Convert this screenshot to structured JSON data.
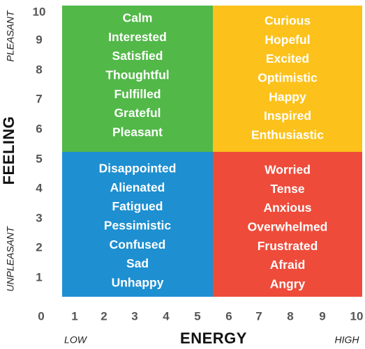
{
  "axes": {
    "y_title": "FEELING",
    "y_top": "PLEASANT",
    "y_bottom": "UNPLEASANT",
    "x_title": "ENERGY",
    "x_left": "LOW",
    "x_right": "HIGH",
    "ticks": [
      0,
      1,
      2,
      3,
      4,
      5,
      6,
      7,
      8,
      9,
      10
    ]
  },
  "quadrants": [
    {
      "color": "#52b848",
      "words": [
        "Calm",
        "Interested",
        "Satisfied",
        "Thoughtful",
        "Fulfilled",
        "Grateful",
        "Pleasant"
      ]
    },
    {
      "color": "#fcc21b",
      "words": [
        "Curious",
        "Hopeful",
        "Excited",
        "Optimistic",
        "Happy",
        "Inspired",
        "Enthusiastic"
      ]
    },
    {
      "color": "#1e8fd0",
      "words": [
        "Disappointed",
        "Alienated",
        "Fatigued",
        "Pessimistic",
        "Confused",
        "Sad",
        "Unhappy"
      ]
    },
    {
      "color": "#ee4b3a",
      "words": [
        "Worried",
        "Tense",
        "Anxious",
        "Overwhelmed",
        "Frustrated",
        "Afraid",
        "Angry"
      ]
    }
  ]
}
